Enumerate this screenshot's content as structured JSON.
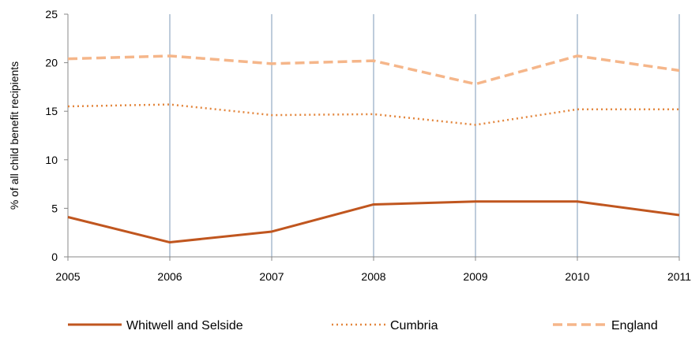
{
  "chart_data": {
    "type": "line",
    "title": "",
    "xlabel": "",
    "ylabel": "% of all child benefit recipients",
    "x": [
      "2005",
      "2006",
      "2007",
      "2008",
      "2009",
      "2010",
      "2011"
    ],
    "ylim": [
      0,
      25
    ],
    "yticks": [
      "0",
      "5",
      "10",
      "15",
      "20",
      "25"
    ],
    "grid": "vertical",
    "legend_position": "bottom",
    "series": [
      {
        "name": "Whitwell and Selside",
        "values": [
          4.1,
          1.5,
          2.6,
          5.4,
          5.7,
          5.7,
          4.3
        ],
        "color": "#c0561f",
        "style": "solid"
      },
      {
        "name": "Cumbria",
        "values": [
          15.5,
          15.7,
          14.6,
          14.7,
          13.6,
          15.2,
          15.2
        ],
        "color": "#e3863d",
        "style": "dotted"
      },
      {
        "name": "England",
        "values": [
          20.4,
          20.7,
          19.9,
          20.2,
          17.8,
          20.7,
          19.2
        ],
        "color": "#f5b68a",
        "style": "dashed"
      }
    ]
  }
}
